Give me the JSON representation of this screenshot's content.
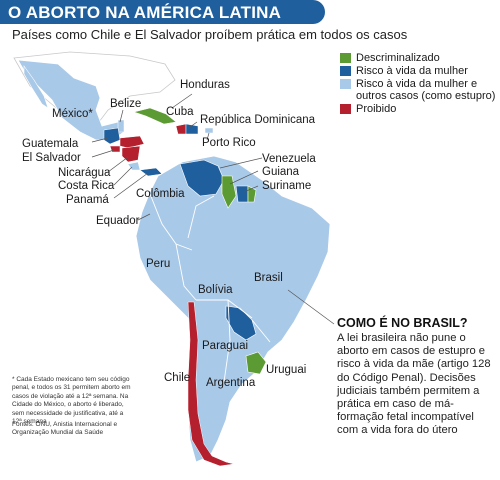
{
  "header": {
    "title": "O ABORTO NA AMÉRICA LATINA",
    "subtitle": "Países como Chile e El Salvador proíbem prática em todos os casos"
  },
  "legend": {
    "items": [
      {
        "label": "Descriminalizado",
        "color": "#5c9a33"
      },
      {
        "label": "Risco à vida da mulher",
        "color": "#1f5f9e"
      },
      {
        "label": "Risco à vida da mulher e outros casos (como estupro)",
        "color": "#a9c9e8"
      },
      {
        "label": "Proibido",
        "color": "#b5202e"
      }
    ]
  },
  "countries": {
    "mexico": "México*",
    "belize": "Belize",
    "honduras": "Honduras",
    "cuba": "Cuba",
    "dominican": "República Dominicana",
    "puerto_rico": "Porto Rico",
    "guatemala": "Guatemala",
    "el_salvador": "El Salvador",
    "nicaragua": "Nicarágua",
    "costa_rica": "Costa Rica",
    "panama": "Panamá",
    "colombia": "Colômbia",
    "venezuela": "Venezuela",
    "guyana": "Guiana",
    "suriname": "Suriname",
    "ecuador": "Equador",
    "peru": "Peru",
    "brazil": "Brasil",
    "bolivia": "Bolívia",
    "paraguay": "Paraguai",
    "uruguay": "Uruguai",
    "chile": "Chile",
    "argentina": "Argentina"
  },
  "brazil_box": {
    "heading": "COMO É NO BRASIL?",
    "text": "A lei brasileira não pune o aborto em casos de estupro e risco à vida da mãe (artigo 128 do Código Penal). Decisões judiciais também permitem a prática em caso de má-formação fetal incompatível com a vida fora do útero"
  },
  "footnote": "* Cada Estado mexicano tem seu código penal, e todos os 31 permitem aborto em casos de violação até a 12ª semana. Na Cidade do México, o aborto é liberado, sem necessidade de justificativa, até a 12ª semana",
  "sources": "Fontes: ONU, Anistia Internacional e Organização Mundial da Saúde"
}
